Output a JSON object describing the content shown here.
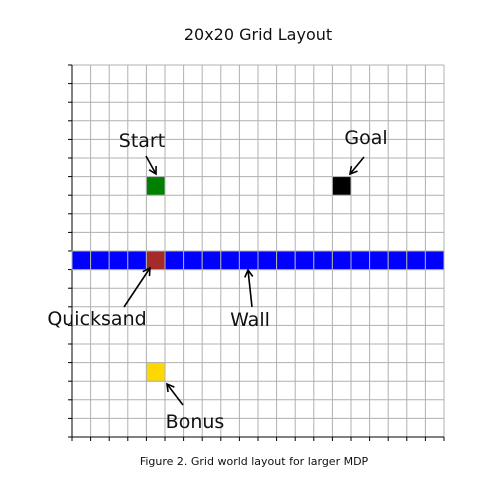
{
  "title": "20x20 Grid Layout",
  "caption": "Figure 2. Grid world layout for larger MDP",
  "grid": {
    "rows": 20,
    "cols": 20
  },
  "colors": {
    "grid_line": "#b0b0b0",
    "wall": "#0000ff",
    "quicksand": "#a52a2a",
    "start": "#008000",
    "goal": "#000000",
    "bonus": "#ffd700"
  },
  "cells": {
    "start": {
      "row": 6,
      "col": 4
    },
    "goal": {
      "row": 6,
      "col": 14
    },
    "quicksand": {
      "row": 10,
      "col": 4
    },
    "bonus": {
      "row": 16,
      "col": 4
    },
    "wall_row": 10
  },
  "labels": {
    "start": "Start",
    "goal": "Goal",
    "quicksand": "Quicksand",
    "wall": "Wall",
    "bonus": "Bonus"
  }
}
